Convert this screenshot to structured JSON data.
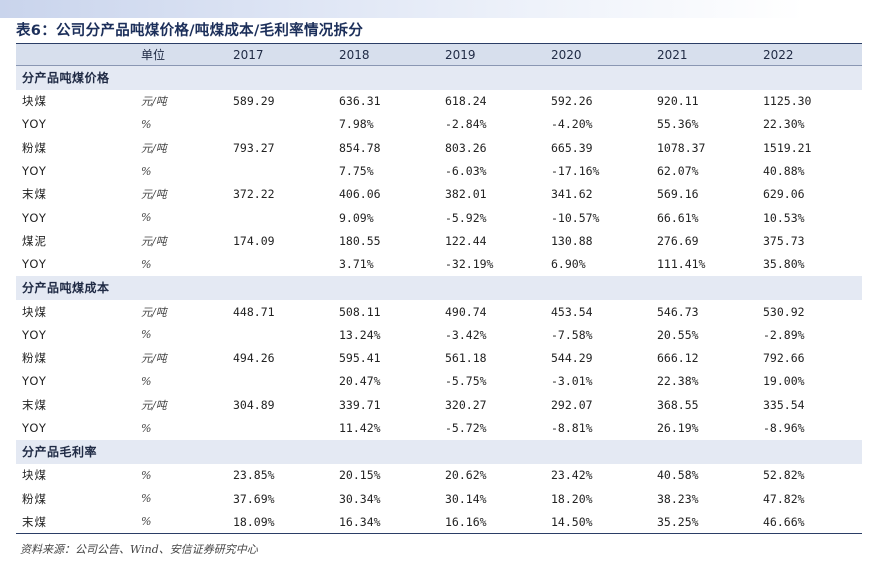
{
  "title": "表6：公司分产品吨煤价格/吨煤成本/毛利率情况拆分",
  "headers": [
    "",
    "单位",
    "2017",
    "2018",
    "2019",
    "2020",
    "2021",
    "2022"
  ],
  "sections": [
    {
      "name": "分产品吨煤价格",
      "rows": [
        [
          "块煤",
          "元/吨",
          "589.29",
          "636.31",
          "618.24",
          "592.26",
          "920.11",
          "1125.30"
        ],
        [
          "YOY",
          "%",
          "",
          "7.98%",
          "-2.84%",
          "-4.20%",
          "55.36%",
          "22.30%"
        ],
        [
          "粉煤",
          "元/吨",
          "793.27",
          "854.78",
          "803.26",
          "665.39",
          "1078.37",
          "1519.21"
        ],
        [
          "YOY",
          "%",
          "",
          "7.75%",
          "-6.03%",
          "-17.16%",
          "62.07%",
          "40.88%"
        ],
        [
          "末煤",
          "元/吨",
          "372.22",
          "406.06",
          "382.01",
          "341.62",
          "569.16",
          "629.06"
        ],
        [
          "YOY",
          "%",
          "",
          "9.09%",
          "-5.92%",
          "-10.57%",
          "66.61%",
          "10.53%"
        ],
        [
          "煤泥",
          "元/吨",
          "174.09",
          "180.55",
          "122.44",
          "130.88",
          "276.69",
          "375.73"
        ],
        [
          "YOY",
          "%",
          "",
          "3.71%",
          "-32.19%",
          "6.90%",
          "111.41%",
          "35.80%"
        ]
      ]
    },
    {
      "name": "分产品吨煤成本",
      "rows": [
        [
          "块煤",
          "元/吨",
          "448.71",
          "508.11",
          "490.74",
          "453.54",
          "546.73",
          "530.92"
        ],
        [
          "YOY",
          "%",
          "",
          "13.24%",
          "-3.42%",
          "-7.58%",
          "20.55%",
          "-2.89%"
        ],
        [
          "粉煤",
          "元/吨",
          "494.26",
          "595.41",
          "561.18",
          "544.29",
          "666.12",
          "792.66"
        ],
        [
          "YOY",
          "%",
          "",
          "20.47%",
          "-5.75%",
          "-3.01%",
          "22.38%",
          "19.00%"
        ],
        [
          "末煤",
          "元/吨",
          "304.89",
          "339.71",
          "320.27",
          "292.07",
          "368.55",
          "335.54"
        ],
        [
          "YOY",
          "%",
          "",
          "11.42%",
          "-5.72%",
          "-8.81%",
          "26.19%",
          "-8.96%"
        ]
      ]
    },
    {
      "name": "分产品毛利率",
      "rows": [
        [
          "块煤",
          "%",
          "23.85%",
          "20.15%",
          "20.62%",
          "23.42%",
          "40.58%",
          "52.82%"
        ],
        [
          "粉煤",
          "%",
          "37.69%",
          "30.34%",
          "30.14%",
          "18.20%",
          "38.23%",
          "47.82%"
        ],
        [
          "末煤",
          "%",
          "18.09%",
          "16.34%",
          "16.16%",
          "14.50%",
          "35.25%",
          "46.66%"
        ]
      ]
    }
  ],
  "source": "资料来源：公司公告、Wind、安信证券研究中心"
}
